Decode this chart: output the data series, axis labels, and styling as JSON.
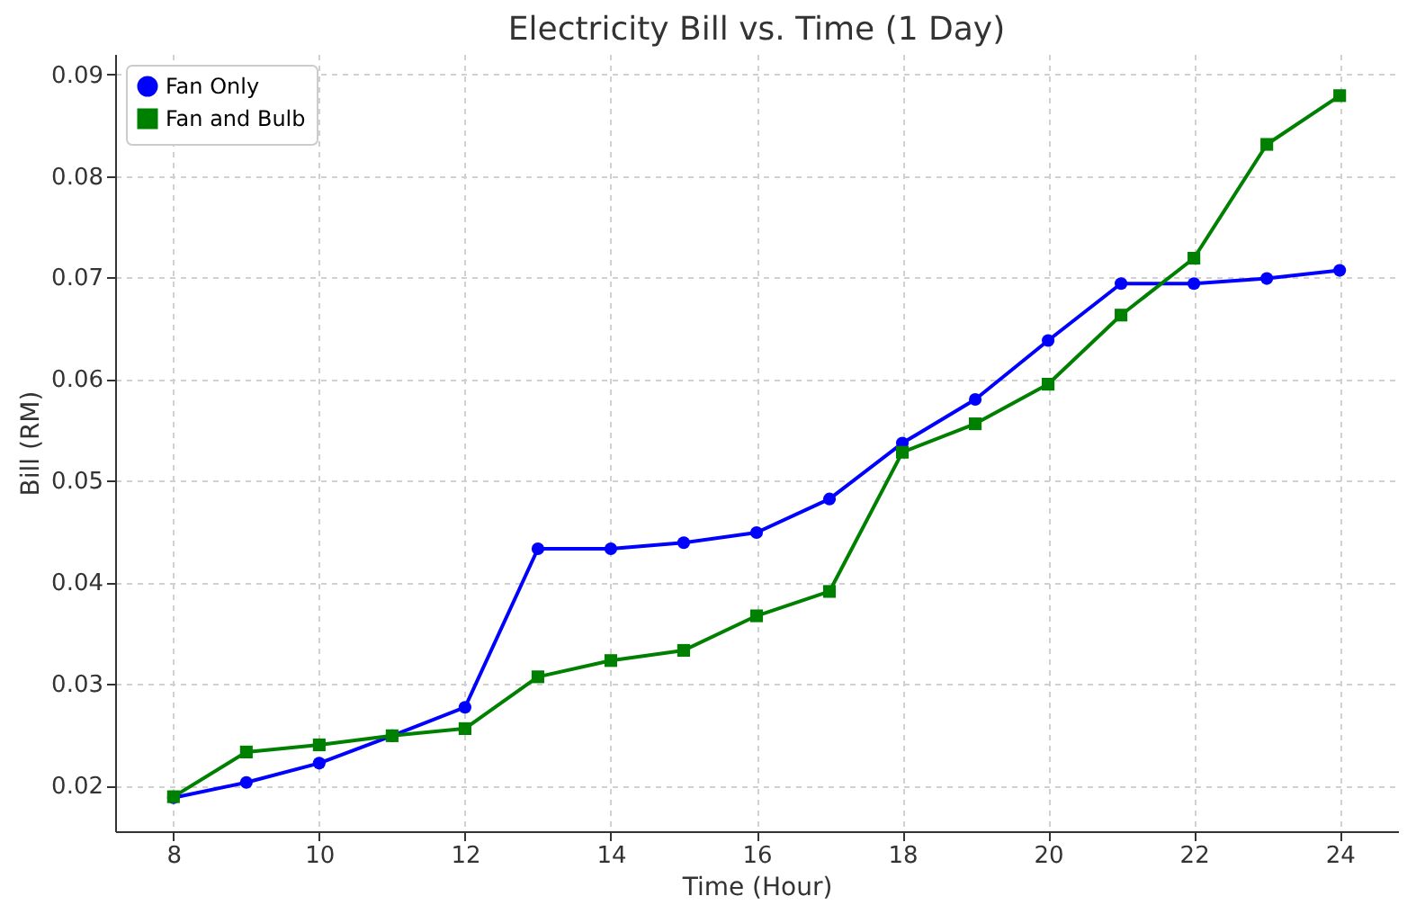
{
  "chart_data": {
    "type": "line",
    "title": "Electricity Bill vs. Time (1 Day)",
    "xlabel": "Time (Hour)",
    "ylabel": "Bill (RM)",
    "x": [
      8,
      9,
      10,
      11,
      12,
      13,
      14,
      15,
      16,
      17,
      18,
      19,
      20,
      21,
      22,
      23,
      24
    ],
    "series": [
      {
        "name": "Fan Only",
        "color": "#0000ff",
        "marker": "circle",
        "values": [
          0.0188,
          0.0203,
          0.0222,
          0.0249,
          0.0277,
          0.0433,
          0.0433,
          0.0439,
          0.0449,
          0.0482,
          0.0537,
          0.058,
          0.0638,
          0.0694,
          0.0694,
          0.0699,
          0.0707
        ]
      },
      {
        "name": "Fan and Bulb",
        "color": "#008000",
        "marker": "square",
        "values": [
          0.0189,
          0.0233,
          0.024,
          0.0249,
          0.0256,
          0.0307,
          0.0323,
          0.0333,
          0.0367,
          0.0391,
          0.0528,
          0.0556,
          0.0595,
          0.0663,
          0.0719,
          0.0831,
          0.0879
        ]
      }
    ],
    "xlim": [
      7.2,
      24.8
    ],
    "xticks": [
      8,
      10,
      12,
      14,
      16,
      18,
      20,
      22,
      24
    ],
    "ylim": [
      0.0155,
      0.092
    ],
    "yticks": [
      0.02,
      0.03,
      0.04,
      0.05,
      0.06,
      0.07,
      0.08,
      0.09
    ],
    "grid": true,
    "legend": "top left",
    "line_style": "solid"
  }
}
